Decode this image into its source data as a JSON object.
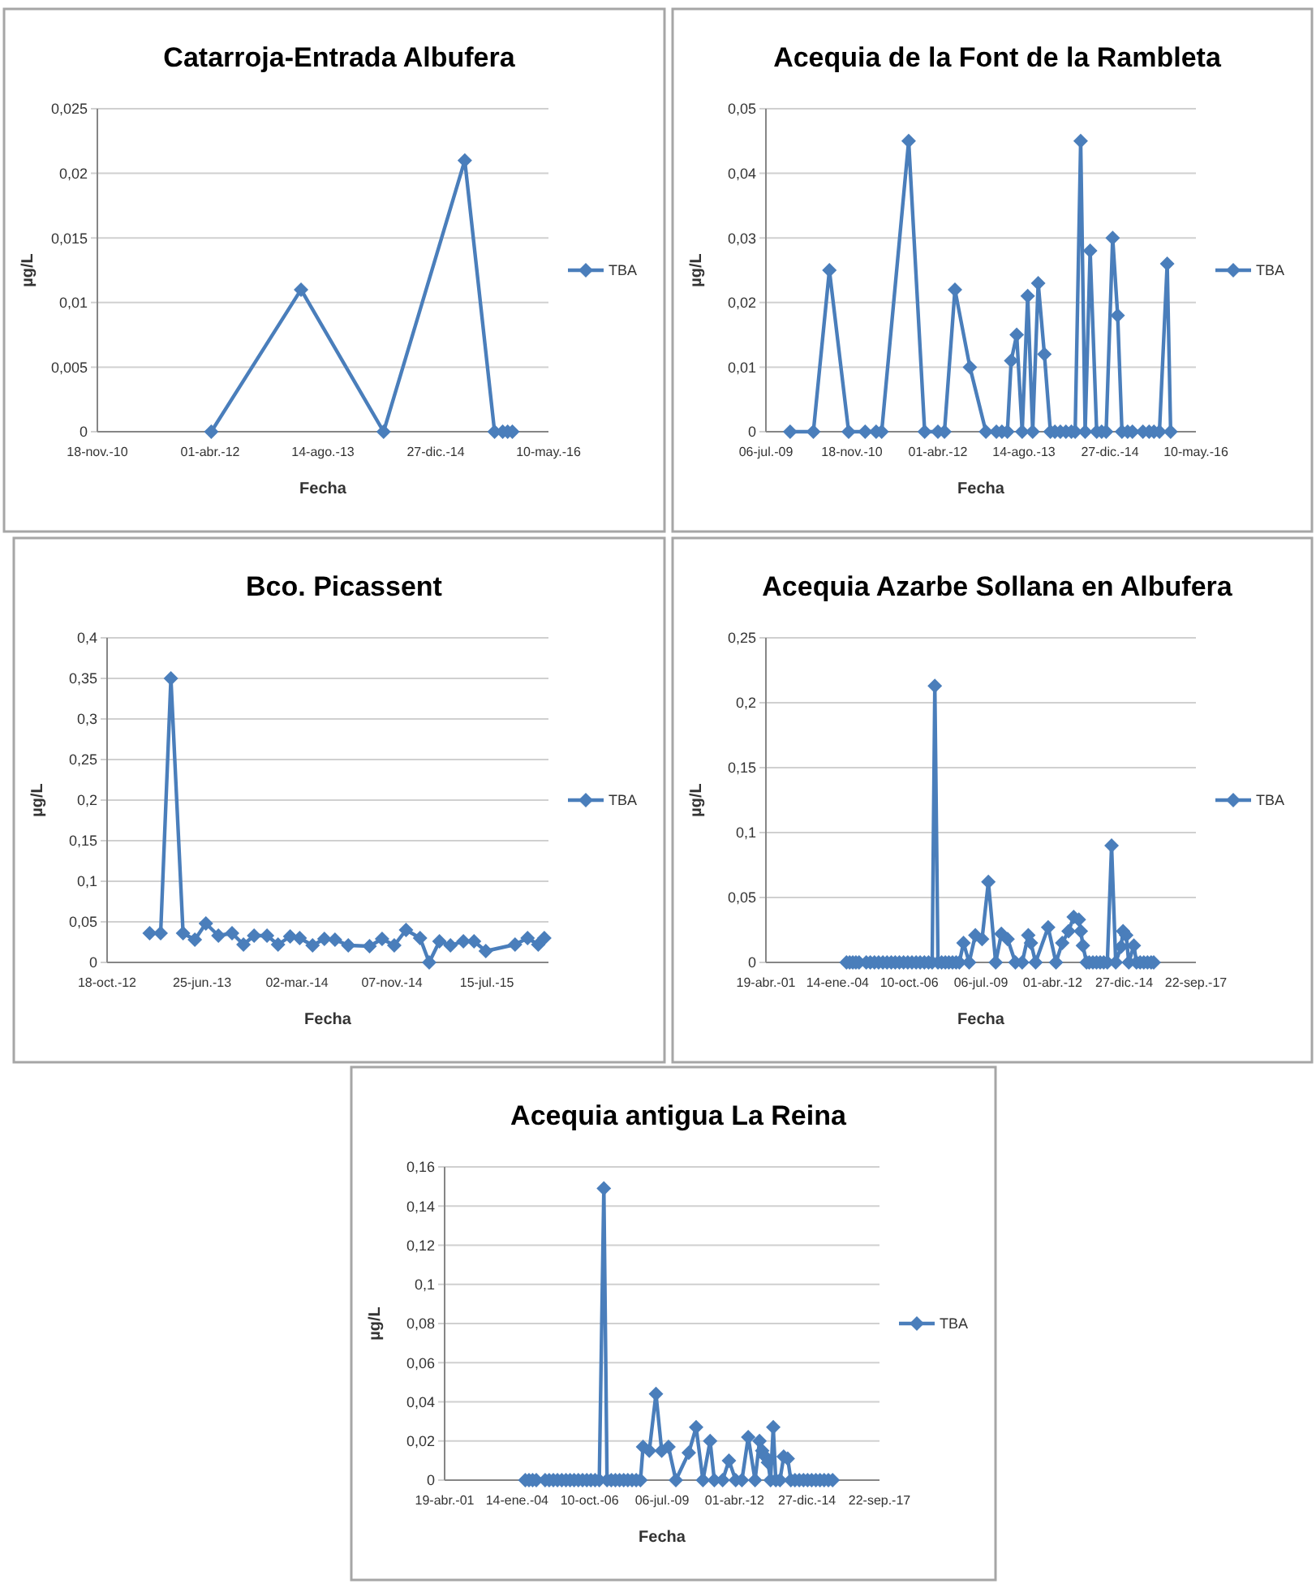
{
  "chart_data": [
    {
      "type": "line",
      "title": "Catarroja-Entrada Albufera",
      "xlabel": "Fecha",
      "ylabel": "µg/L",
      "legend": "right",
      "grid": "y",
      "marker": "diamond",
      "line_style": "solid",
      "xlim": [
        "2010-11-18",
        "2016-05-10"
      ],
      "xticks": [
        {
          "value": "2010-11-18",
          "label": "18-nov.-10"
        },
        {
          "value": "2012-04-01",
          "label": "01-abr.-12"
        },
        {
          "value": "2013-08-14",
          "label": "14-ago.-13"
        },
        {
          "value": "2014-12-27",
          "label": "27-dic.-14"
        },
        {
          "value": "2016-05-10",
          "label": "10-may.-16"
        }
      ],
      "ylim": [
        0,
        0.025
      ],
      "yticks": [
        {
          "value": 0,
          "label": "0"
        },
        {
          "value": 0.005,
          "label": "0,005"
        },
        {
          "value": 0.01,
          "label": "0,01"
        },
        {
          "value": 0.015,
          "label": "0,015"
        },
        {
          "value": 0.02,
          "label": "0,02"
        },
        {
          "value": 0.025,
          "label": "0,025"
        }
      ],
      "series": [
        {
          "name": "TBA",
          "color": "#4a7ebb",
          "x": [
            "2012-04-06",
            "2013-05-09",
            "2014-05-10",
            "2015-05-05",
            "2015-09-14",
            "2015-10-20",
            "2015-11-11",
            "2015-12-02"
          ],
          "values": [
            0,
            0.011,
            0,
            0.021,
            0,
            0,
            0,
            0
          ]
        }
      ]
    },
    {
      "type": "line",
      "title": "Acequia de la Font de la Rambleta",
      "xlabel": "Fecha",
      "ylabel": "µg/L",
      "legend": "right",
      "grid": "y",
      "marker": "diamond",
      "line_style": "solid",
      "xlim": [
        "2009-07-06",
        "2016-05-10"
      ],
      "xticks": [
        {
          "value": "2009-07-06",
          "label": "06-jul.-09"
        },
        {
          "value": "2010-11-18",
          "label": "18-nov.-10"
        },
        {
          "value": "2012-04-01",
          "label": "01-abr.-12"
        },
        {
          "value": "2013-08-14",
          "label": "14-ago.-13"
        },
        {
          "value": "2014-12-27",
          "label": "27-dic.-14"
        },
        {
          "value": "2016-05-10",
          "label": "10-may.-16"
        }
      ],
      "ylim": [
        0,
        0.05
      ],
      "yticks": [
        {
          "value": 0,
          "label": "0"
        },
        {
          "value": 0.01,
          "label": "0,01"
        },
        {
          "value": 0.02,
          "label": "0,02"
        },
        {
          "value": 0.03,
          "label": "0,03"
        },
        {
          "value": 0.04,
          "label": "0,04"
        },
        {
          "value": 0.05,
          "label": "0,05"
        }
      ],
      "series": [
        {
          "name": "TBA",
          "color": "#4a7ebb",
          "x": [
            "2009-11-24",
            "2010-04-08",
            "2010-07-10",
            "2010-10-30",
            "2011-02-03",
            "2011-04-08",
            "2011-05-10",
            "2011-10-14",
            "2012-01-15",
            "2012-04-01",
            "2012-05-09",
            "2012-07-09",
            "2012-10-04",
            "2013-01-05",
            "2013-03-07",
            "2013-04-08",
            "2013-05-10",
            "2013-06-01",
            "2013-07-03",
            "2013-08-04",
            "2013-09-05",
            "2013-10-04",
            "2013-11-05",
            "2013-12-11",
            "2014-01-15",
            "2014-02-10",
            "2014-03-14",
            "2014-04-15",
            "2014-05-17",
            "2014-06-08",
            "2014-07-10",
            "2014-08-05",
            "2014-09-03",
            "2014-10-11",
            "2014-11-09",
            "2014-12-05",
            "2015-01-12",
            "2015-02-10",
            "2015-03-07",
            "2015-04-09",
            "2015-05-07",
            "2015-07-07",
            "2015-08-12",
            "2015-09-09",
            "2015-10-11",
            "2015-11-25",
            "2015-12-15"
          ],
          "values": [
            0,
            0,
            0.025,
            0,
            0,
            0,
            0,
            0.045,
            0,
            0,
            0,
            0.022,
            0.01,
            0,
            0,
            0,
            0,
            0.011,
            0.015,
            0,
            0.021,
            0,
            0.023,
            0.012,
            0,
            0,
            0,
            0,
            0,
            0,
            0.045,
            0,
            0.028,
            0,
            0,
            0,
            0.03,
            0.018,
            0,
            0,
            0,
            0,
            0,
            0,
            0,
            0.026,
            0
          ]
        }
      ]
    },
    {
      "type": "line",
      "title": "Bco. Picassent",
      "xlabel": "Fecha",
      "ylabel": "µg/L",
      "legend": "right",
      "grid": "y",
      "marker": "diamond",
      "line_style": "solid",
      "xlim": [
        "2012-10-18",
        "2015-12-24"
      ],
      "xticks": [
        {
          "value": "2012-10-18",
          "label": "18-oct.-12"
        },
        {
          "value": "2013-06-25",
          "label": "25-jun.-13"
        },
        {
          "value": "2014-03-02",
          "label": "02-mar.-14"
        },
        {
          "value": "2014-11-07",
          "label": "07-nov.-14"
        },
        {
          "value": "2015-07-15",
          "label": "15-jul.-15"
        }
      ],
      "ylim": [
        0,
        0.4
      ],
      "yticks": [
        {
          "value": 0,
          "label": "0"
        },
        {
          "value": 0.05,
          "label": "0,05"
        },
        {
          "value": 0.1,
          "label": "0,1"
        },
        {
          "value": 0.15,
          "label": "0,15"
        },
        {
          "value": 0.2,
          "label": "0,2"
        },
        {
          "value": 0.25,
          "label": "0,25"
        },
        {
          "value": 0.3,
          "label": "0,3"
        },
        {
          "value": 0.35,
          "label": "0,35"
        },
        {
          "value": 0.4,
          "label": "0,4"
        }
      ],
      "series": [
        {
          "name": "TBA",
          "color": "#4a7ebb",
          "x": [
            "2013-02-07",
            "2013-03-08",
            "2013-04-04",
            "2013-05-06",
            "2013-06-06",
            "2013-07-05",
            "2013-08-07",
            "2013-09-12",
            "2013-10-12",
            "2013-11-09",
            "2013-12-13",
            "2014-01-11",
            "2014-02-12",
            "2014-03-09",
            "2014-04-12",
            "2014-05-13",
            "2014-06-10",
            "2014-07-15",
            "2014-09-09",
            "2014-10-12",
            "2014-11-13",
            "2014-12-14",
            "2015-01-20",
            "2015-02-13",
            "2015-03-12",
            "2015-04-10",
            "2015-05-14",
            "2015-06-11",
            "2015-07-12",
            "2015-09-27",
            "2015-10-30",
            "2015-11-27",
            "2015-12-13"
          ],
          "values": [
            0.036,
            0.036,
            0.35,
            0.036,
            0.028,
            0.048,
            0.033,
            0.036,
            0.022,
            0.033,
            0.033,
            0.022,
            0.032,
            0.03,
            0.021,
            0.029,
            0.028,
            0.021,
            0.02,
            0.029,
            0.021,
            0.04,
            0.03,
            0,
            0.026,
            0.021,
            0.026,
            0.026,
            0.014,
            0.022,
            0.03,
            0.022,
            0.03
          ]
        }
      ]
    },
    {
      "type": "line",
      "title": "Acequia Azarbe Sollana en Albufera",
      "xlabel": "Fecha",
      "ylabel": "µg/L",
      "legend": "right",
      "grid": "y",
      "marker": "diamond",
      "line_style": "solid",
      "xlim": [
        "2001-04-19",
        "2017-09-22"
      ],
      "xticks": [
        {
          "value": "2001-04-19",
          "label": "19-abr.-01"
        },
        {
          "value": "2004-01-14",
          "label": "14-ene.-04"
        },
        {
          "value": "2006-10-10",
          "label": "10-oct.-06"
        },
        {
          "value": "2009-07-06",
          "label": "06-jul.-09"
        },
        {
          "value": "2012-04-01",
          "label": "01-abr.-12"
        },
        {
          "value": "2014-12-27",
          "label": "27-dic.-14"
        },
        {
          "value": "2017-09-22",
          "label": "22-sep.-17"
        }
      ],
      "ylim": [
        0,
        0.25
      ],
      "yticks": [
        {
          "value": 0,
          "label": "0"
        },
        {
          "value": 0.05,
          "label": "0,05"
        },
        {
          "value": 0.1,
          "label": "0,1"
        },
        {
          "value": 0.15,
          "label": "0,15"
        },
        {
          "value": 0.2,
          "label": "0,2"
        },
        {
          "value": 0.25,
          "label": "0,25"
        }
      ],
      "series": [
        {
          "name": "TBA",
          "color": "#4a7ebb",
          "x": [
            "2004-05-17",
            "2004-06-30",
            "2004-08-13",
            "2004-09-26",
            "2004-11-09",
            "2005-02-17",
            "2005-04-15",
            "2005-06-12",
            "2005-08-09",
            "2005-10-07",
            "2005-12-04",
            "2006-02-01",
            "2006-03-28",
            "2006-05-25",
            "2006-07-23",
            "2006-09-20",
            "2006-11-17",
            "2007-01-14",
            "2007-03-11",
            "2007-05-09",
            "2007-07-06",
            "2007-08-26",
            "2007-10-02",
            "2007-11-15",
            "2008-01-05",
            "2008-02-25",
            "2008-04-15",
            "2008-06-05",
            "2008-07-25",
            "2008-09-08",
            "2008-11-05",
            "2009-01-23",
            "2009-04-19",
            "2009-07-22",
            "2009-10-18",
            "2010-01-28",
            "2010-04-17",
            "2010-07-13",
            "2010-10-30",
            "2011-02-02",
            "2011-04-28",
            "2011-06-04",
            "2011-08-08",
            "2012-01-30",
            "2012-05-18",
            "2012-08-14",
            "2012-11-10",
            "2013-01-20",
            "2013-04-02",
            "2013-04-30",
            "2013-05-29",
            "2013-07-19",
            "2013-08-25",
            "2013-10-15",
            "2013-12-05",
            "2014-01-25",
            "2014-03-15",
            "2014-05-05",
            "2014-07-03",
            "2014-08-30",
            "2014-11-12",
            "2014-12-10",
            "2015-01-23",
            "2015-02-28",
            "2015-05-10",
            "2015-06-16",
            "2015-08-06",
            "2015-09-26",
            "2015-11-16",
            "2016-01-06",
            "2016-02-11"
          ],
          "values": [
            0,
            0,
            0,
            0,
            0,
            0,
            0,
            0,
            0,
            0,
            0,
            0,
            0,
            0,
            0,
            0,
            0,
            0,
            0,
            0,
            0,
            0,
            0.213,
            0,
            0,
            0,
            0,
            0,
            0,
            0,
            0.015,
            0,
            0.021,
            0.018,
            0.062,
            0,
            0.022,
            0.018,
            0,
            0,
            0.021,
            0.015,
            0,
            0.027,
            0,
            0.015,
            0.024,
            0.035,
            0.033,
            0.024,
            0.013,
            0,
            0,
            0,
            0,
            0,
            0,
            0,
            0.09,
            0,
            0.012,
            0.024,
            0.021,
            0,
            0.013,
            0,
            0,
            0,
            0,
            0,
            0
          ]
        }
      ]
    },
    {
      "type": "line",
      "title": "Acequia antigua La Reina",
      "xlabel": "Fecha",
      "ylabel": "µg/L",
      "legend": "right",
      "grid": "y",
      "marker": "diamond",
      "line_style": "solid",
      "xlim": [
        "2001-04-19",
        "2017-09-22"
      ],
      "xticks": [
        {
          "value": "2001-04-19",
          "label": "19-abr.-01"
        },
        {
          "value": "2004-01-14",
          "label": "14-ene.-04"
        },
        {
          "value": "2006-10-10",
          "label": "10-oct.-06"
        },
        {
          "value": "2009-07-06",
          "label": "06-jul.-09"
        },
        {
          "value": "2012-04-01",
          "label": "01-abr.-12"
        },
        {
          "value": "2014-12-27",
          "label": "27-dic.-14"
        },
        {
          "value": "2017-09-22",
          "label": "22-sep.-17"
        }
      ],
      "ylim": [
        0,
        0.16
      ],
      "yticks": [
        {
          "value": 0,
          "label": "0"
        },
        {
          "value": 0.02,
          "label": "0,02"
        },
        {
          "value": 0.04,
          "label": "0,04"
        },
        {
          "value": 0.06,
          "label": "0,06"
        },
        {
          "value": 0.08,
          "label": "0,08"
        },
        {
          "value": 0.1,
          "label": "0,1"
        },
        {
          "value": 0.12,
          "label": "0,12"
        },
        {
          "value": 0.14,
          "label": "0,14"
        },
        {
          "value": 0.16,
          "label": "0,16"
        }
      ],
      "series": [
        {
          "name": "TBA",
          "color": "#4a7ebb",
          "x": [
            "2004-05-06",
            "2004-06-26",
            "2004-08-15",
            "2004-10-05",
            "2005-02-04",
            "2005-04-01",
            "2005-05-28",
            "2005-07-24",
            "2005-09-21",
            "2005-11-18",
            "2006-01-14",
            "2006-03-11",
            "2006-05-08",
            "2006-07-05",
            "2006-09-01",
            "2006-10-28",
            "2006-12-25",
            "2007-02-21",
            "2007-04-25",
            "2007-06-08",
            "2007-08-05",
            "2007-10-01",
            "2007-11-28",
            "2008-01-24",
            "2008-03-21",
            "2008-05-18",
            "2008-07-14",
            "2008-09-11",
            "2008-10-17",
            "2009-01-11",
            "2009-04-13",
            "2009-07-01",
            "2009-10-03",
            "2010-01-12",
            "2010-07-10",
            "2010-10-19",
            "2011-01-21",
            "2011-04-30",
            "2011-06-27",
            "2011-10-20",
            "2012-01-15",
            "2012-04-17",
            "2012-07-12",
            "2012-10-07",
            "2013-01-09",
            "2013-03-12",
            "2013-04-18",
            "2013-05-30",
            "2013-07-06",
            "2013-08-11",
            "2013-09-17",
            "2013-10-22",
            "2013-12-19",
            "2014-02-08",
            "2014-04-05",
            "2014-05-18",
            "2014-07-14",
            "2014-09-11",
            "2014-11-08",
            "2015-01-04",
            "2015-03-01",
            "2015-04-28",
            "2015-06-24",
            "2015-08-21",
            "2015-10-18",
            "2015-12-15"
          ],
          "values": [
            0,
            0,
            0,
            0,
            0,
            0,
            0,
            0,
            0,
            0,
            0,
            0,
            0,
            0,
            0,
            0,
            0,
            0,
            0.149,
            0,
            0,
            0,
            0,
            0,
            0,
            0,
            0,
            0,
            0.017,
            0.015,
            0.044,
            0.015,
            0.017,
            0,
            0.014,
            0.027,
            0,
            0.02,
            0,
            0,
            0.01,
            0,
            0,
            0.022,
            0,
            0.02,
            0.015,
            0.012,
            0.009,
            0,
            0.027,
            0,
            0,
            0.012,
            0.011,
            0,
            0,
            0,
            0,
            0,
            0,
            0,
            0,
            0,
            0,
            0
          ]
        }
      ]
    }
  ]
}
